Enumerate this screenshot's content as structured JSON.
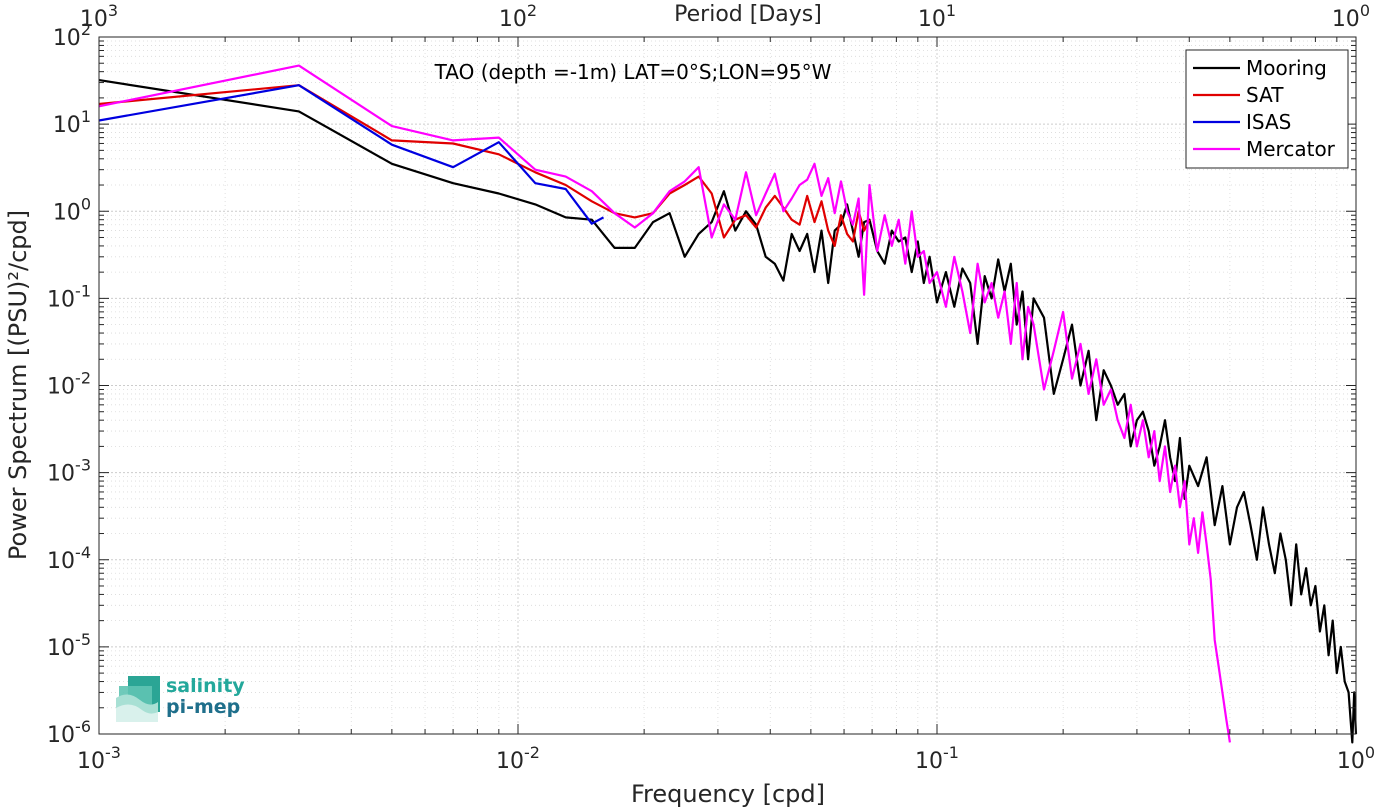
{
  "chart_data": {
    "type": "line",
    "title": "TAO (depth =-1m) LAT=0°S;LON=95°W",
    "xlabel": "Frequency [cpd]",
    "ylabel": "Power Spectrum [(PSU)²/cpd]",
    "x2label": "Period [Days]",
    "xscale": "log",
    "yscale": "log",
    "xlim": [
      0.001,
      1
    ],
    "ylim": [
      1e-06,
      100
    ],
    "grid": true,
    "legend_position": "top-right",
    "x_ticks": [
      {
        "value": 0.001,
        "mant": "10",
        "exp": "-3"
      },
      {
        "value": 0.01,
        "mant": "10",
        "exp": "-2"
      },
      {
        "value": 0.1,
        "mant": "10",
        "exp": "-1"
      },
      {
        "value": 1,
        "mant": "10",
        "exp": "0"
      }
    ],
    "x2_ticks": [
      {
        "value": 0.001,
        "mant": "10",
        "exp": "3"
      },
      {
        "value": 0.01,
        "mant": "10",
        "exp": "2"
      },
      {
        "value": 0.1,
        "mant": "10",
        "exp": "1"
      },
      {
        "value": 1,
        "mant": "10",
        "exp": "0"
      }
    ],
    "y_ticks": [
      {
        "value": 100,
        "mant": "10",
        "exp": "2"
      },
      {
        "value": 10,
        "mant": "10",
        "exp": "1"
      },
      {
        "value": 1,
        "mant": "10",
        "exp": "0"
      },
      {
        "value": 0.1,
        "mant": "10",
        "exp": "-1"
      },
      {
        "value": 0.01,
        "mant": "10",
        "exp": "-2"
      },
      {
        "value": 0.001,
        "mant": "10",
        "exp": "-3"
      },
      {
        "value": 0.0001,
        "mant": "10",
        "exp": "-4"
      },
      {
        "value": 1e-05,
        "mant": "10",
        "exp": "-5"
      },
      {
        "value": 1e-06,
        "mant": "10",
        "exp": "-6"
      }
    ],
    "series": [
      {
        "name": "Mooring",
        "color": "#000000",
        "x": [
          0.001,
          0.003,
          0.005,
          0.007,
          0.009,
          0.011,
          0.013,
          0.015,
          0.017,
          0.019,
          0.021,
          0.023,
          0.025,
          0.027,
          0.029,
          0.031,
          0.033,
          0.035,
          0.037,
          0.039,
          0.041,
          0.043,
          0.045,
          0.047,
          0.049,
          0.051,
          0.053,
          0.055,
          0.057,
          0.059,
          0.061,
          0.063,
          0.065,
          0.067,
          0.069,
          0.072,
          0.075,
          0.078,
          0.081,
          0.084,
          0.087,
          0.09,
          0.093,
          0.096,
          0.1,
          0.105,
          0.11,
          0.115,
          0.12,
          0.125,
          0.13,
          0.135,
          0.14,
          0.145,
          0.15,
          0.155,
          0.16,
          0.165,
          0.17,
          0.18,
          0.19,
          0.2,
          0.21,
          0.22,
          0.23,
          0.24,
          0.25,
          0.26,
          0.27,
          0.28,
          0.29,
          0.3,
          0.31,
          0.32,
          0.33,
          0.34,
          0.35,
          0.36,
          0.37,
          0.38,
          0.39,
          0.4,
          0.42,
          0.44,
          0.46,
          0.48,
          0.5,
          0.52,
          0.54,
          0.56,
          0.58,
          0.6,
          0.62,
          0.64,
          0.66,
          0.68,
          0.7,
          0.72,
          0.74,
          0.76,
          0.78,
          0.8,
          0.82,
          0.84,
          0.86,
          0.88,
          0.9,
          0.92,
          0.94,
          0.96,
          0.97,
          0.98,
          0.99,
          1.0
        ],
        "y": [
          32,
          14,
          3.5,
          2.1,
          1.6,
          1.2,
          0.85,
          0.8,
          0.38,
          0.38,
          0.75,
          0.95,
          0.3,
          0.55,
          0.75,
          1.7,
          0.6,
          1.0,
          0.7,
          0.3,
          0.25,
          0.16,
          0.55,
          0.35,
          0.55,
          0.2,
          0.6,
          0.15,
          0.6,
          0.7,
          1.2,
          0.6,
          0.3,
          0.75,
          0.8,
          0.35,
          0.25,
          0.6,
          0.45,
          0.5,
          0.2,
          0.45,
          0.15,
          0.3,
          0.09,
          0.2,
          0.08,
          0.22,
          0.15,
          0.03,
          0.18,
          0.1,
          0.28,
          0.12,
          0.25,
          0.05,
          0.12,
          0.02,
          0.1,
          0.06,
          0.008,
          0.02,
          0.05,
          0.01,
          0.025,
          0.004,
          0.015,
          0.01,
          0.006,
          0.008,
          0.002,
          0.004,
          0.005,
          0.003,
          0.0012,
          0.002,
          0.004,
          0.0015,
          0.0008,
          0.0025,
          0.0005,
          0.0012,
          0.0007,
          0.0015,
          0.00025,
          0.0007,
          0.00015,
          0.0004,
          0.0006,
          0.00025,
          0.0001,
          0.0004,
          0.00015,
          7e-05,
          0.0002,
          0.0001,
          3e-05,
          0.00015,
          4e-05,
          8e-05,
          3e-05,
          5e-05,
          1.5e-05,
          3e-05,
          8e-06,
          2e-05,
          5e-06,
          1e-05,
          4e-06,
          3e-06,
          1.5e-06,
          8e-07,
          3e-06,
          1e-06
        ]
      },
      {
        "name": "SAT",
        "color": "#e00000",
        "x": [
          0.001,
          0.003,
          0.005,
          0.007,
          0.009,
          0.011,
          0.013,
          0.015,
          0.017,
          0.019,
          0.021,
          0.023,
          0.025,
          0.027,
          0.029,
          0.031,
          0.033,
          0.035,
          0.037,
          0.039,
          0.041,
          0.043,
          0.045,
          0.047,
          0.049,
          0.051,
          0.053,
          0.055,
          0.057,
          0.059,
          0.061,
          0.063,
          0.065,
          0.067,
          0.069
        ],
        "y": [
          17,
          28,
          6.5,
          6.0,
          4.5,
          2.8,
          2.0,
          1.3,
          0.95,
          0.85,
          0.95,
          1.6,
          2.0,
          2.5,
          1.6,
          0.5,
          0.8,
          0.9,
          0.65,
          1.1,
          1.5,
          1.1,
          0.8,
          0.7,
          1.5,
          0.75,
          1.3,
          0.6,
          0.4,
          0.9,
          0.55,
          0.45,
          1.0,
          0.6,
          0.8
        ]
      },
      {
        "name": "ISAS",
        "color": "#0000e0",
        "x": [
          0.001,
          0.003,
          0.005,
          0.007,
          0.009,
          0.011,
          0.013,
          0.015,
          0.016
        ],
        "y": [
          11,
          28,
          5.8,
          3.2,
          6.2,
          2.1,
          1.8,
          0.72,
          0.85
        ]
      },
      {
        "name": "Mercator",
        "color": "#ff00ff",
        "x": [
          0.001,
          0.003,
          0.005,
          0.007,
          0.009,
          0.011,
          0.013,
          0.015,
          0.017,
          0.019,
          0.021,
          0.023,
          0.025,
          0.027,
          0.029,
          0.031,
          0.033,
          0.035,
          0.037,
          0.039,
          0.041,
          0.043,
          0.045,
          0.047,
          0.049,
          0.051,
          0.053,
          0.055,
          0.057,
          0.059,
          0.061,
          0.063,
          0.065,
          0.067,
          0.069,
          0.072,
          0.075,
          0.078,
          0.081,
          0.084,
          0.087,
          0.09,
          0.093,
          0.096,
          0.1,
          0.105,
          0.11,
          0.115,
          0.12,
          0.125,
          0.13,
          0.135,
          0.14,
          0.145,
          0.15,
          0.155,
          0.16,
          0.165,
          0.17,
          0.18,
          0.19,
          0.2,
          0.21,
          0.22,
          0.23,
          0.24,
          0.25,
          0.26,
          0.27,
          0.28,
          0.29,
          0.3,
          0.31,
          0.32,
          0.33,
          0.34,
          0.35,
          0.36,
          0.37,
          0.38,
          0.39,
          0.4,
          0.41,
          0.42,
          0.43,
          0.44,
          0.45,
          0.46,
          0.47,
          0.48,
          0.49,
          0.5
        ],
        "y": [
          16,
          47,
          9.5,
          6.5,
          7.0,
          3.0,
          2.5,
          1.7,
          0.95,
          0.65,
          0.95,
          1.7,
          2.2,
          3.2,
          0.5,
          1.2,
          0.8,
          2.8,
          0.9,
          1.6,
          2.7,
          1.0,
          1.4,
          2.0,
          2.3,
          3.5,
          1.5,
          2.4,
          0.95,
          2.2,
          1.0,
          0.7,
          1.4,
          0.11,
          2.0,
          0.35,
          0.9,
          0.4,
          0.8,
          0.25,
          1.0,
          0.3,
          0.35,
          0.15,
          0.2,
          0.08,
          0.3,
          0.12,
          0.04,
          0.25,
          0.09,
          0.15,
          0.06,
          0.12,
          0.03,
          0.15,
          0.02,
          0.08,
          0.05,
          0.009,
          0.025,
          0.07,
          0.012,
          0.03,
          0.008,
          0.02,
          0.006,
          0.009,
          0.004,
          0.0025,
          0.006,
          0.002,
          0.004,
          0.0015,
          0.003,
          0.0008,
          0.002,
          0.0006,
          0.0012,
          0.0004,
          0.0008,
          0.00015,
          0.0003,
          0.00012,
          0.00035,
          0.00015,
          6e-05,
          1.2e-05,
          6e-06,
          3e-06,
          1.5e-06,
          8e-07
        ]
      }
    ]
  },
  "logo": {
    "line1": "salinity",
    "line2": "pi-mep"
  }
}
